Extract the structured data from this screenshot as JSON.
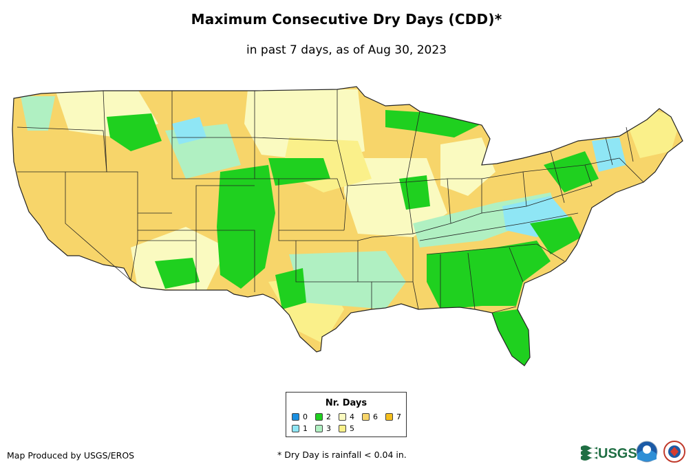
{
  "header": {
    "title": "Maximum Consecutive Dry Days (CDD)*",
    "subtitle": "in past 7 days, as of Aug 30, 2023"
  },
  "legend": {
    "title": "Nr. Days",
    "items": [
      {
        "label": "0",
        "color": "#1a8fe0"
      },
      {
        "label": "1",
        "color": "#8fe6f5"
      },
      {
        "label": "2",
        "color": "#1fd01f"
      },
      {
        "label": "3",
        "color": "#b0f0c2"
      },
      {
        "label": "4",
        "color": "#fafac0"
      },
      {
        "label": "5",
        "color": "#faf08a"
      },
      {
        "label": "6",
        "color": "#f7d56a"
      },
      {
        "label": "7",
        "color": "#f5bf1e"
      }
    ]
  },
  "footer": {
    "credit": "Map Produced by USGS/EROS",
    "footnote": "* Dry Day is rainfall < 0.04 in.",
    "logo_text": "USGS"
  }
}
